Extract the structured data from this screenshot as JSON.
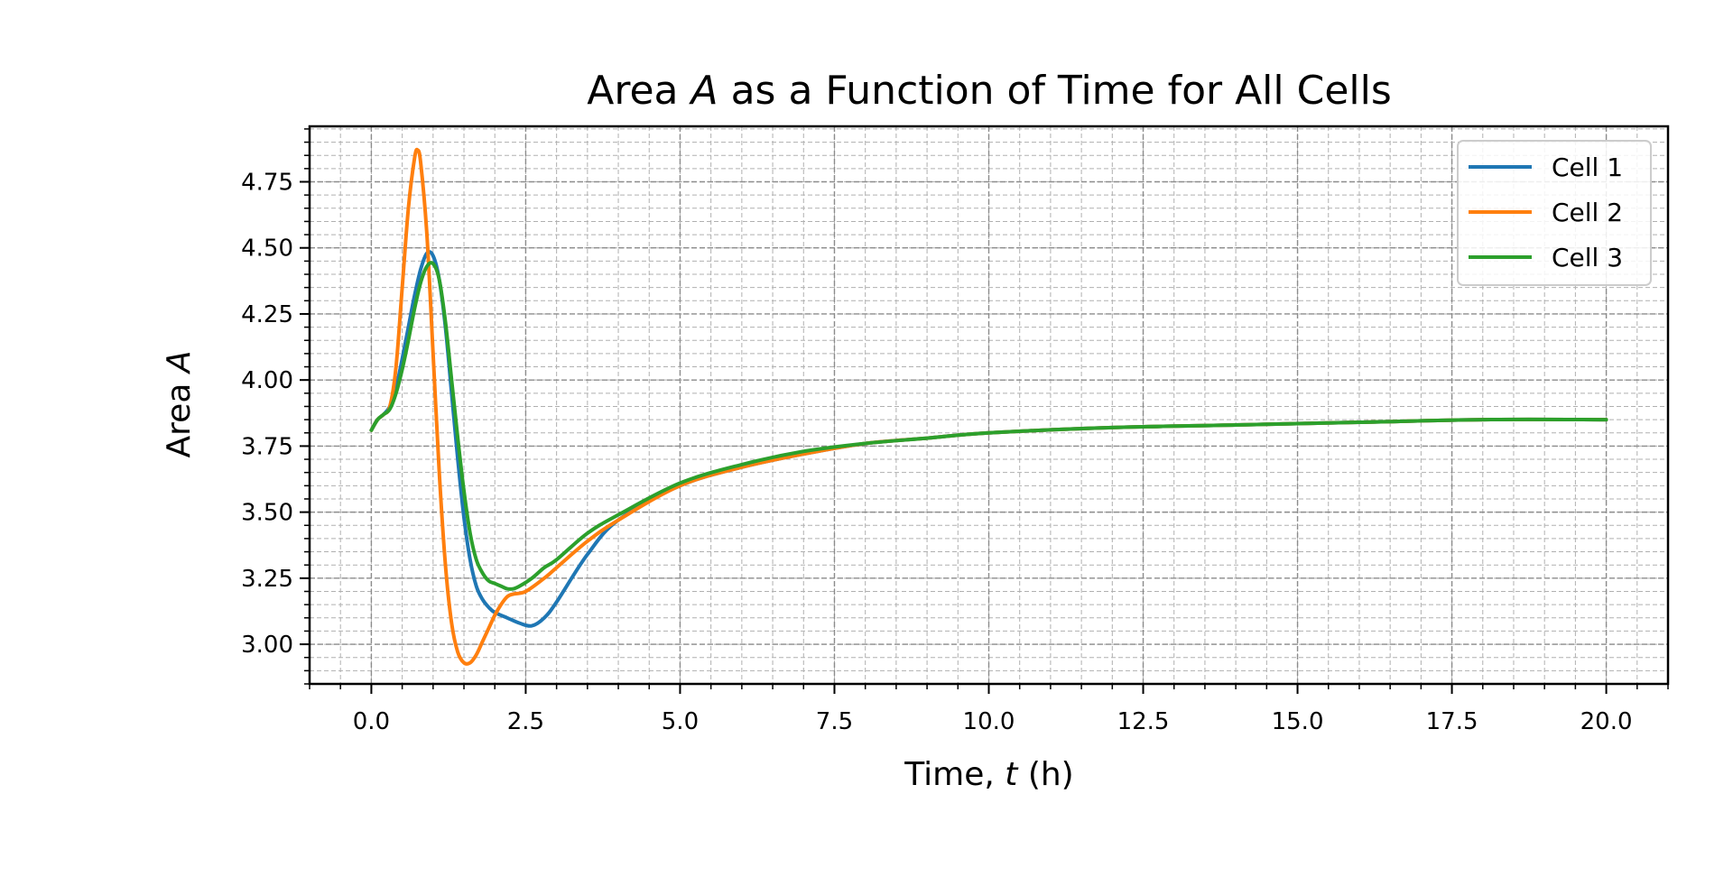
{
  "chart_data": {
    "type": "line",
    "title_parts": [
      "Area ",
      "A",
      " as a Function of Time for All Cells"
    ],
    "xlabel_parts": [
      "Time, ",
      "t",
      " (h)"
    ],
    "ylabel_parts": [
      "Area ",
      "A"
    ],
    "xlim": [
      -1.0,
      21.0
    ],
    "ylim": [
      2.85,
      4.96
    ],
    "xticks": [
      0.0,
      2.5,
      5.0,
      7.5,
      10.0,
      12.5,
      15.0,
      17.5,
      20.0
    ],
    "xtick_labels": [
      "0.0",
      "2.5",
      "5.0",
      "7.5",
      "10.0",
      "12.5",
      "15.0",
      "17.5",
      "20.0"
    ],
    "yticks": [
      3.0,
      3.25,
      3.5,
      3.75,
      4.0,
      4.25,
      4.5,
      4.75
    ],
    "ytick_labels": [
      "3.00",
      "3.25",
      "3.50",
      "3.75",
      "4.00",
      "4.25",
      "4.50",
      "4.75"
    ],
    "grid": true,
    "minor_grid": true,
    "legend_position": "upper right",
    "series": [
      {
        "name": "Cell 1",
        "color": "#1f77b4",
        "x": [
          0.0,
          0.1,
          0.2,
          0.3,
          0.4,
          0.5,
          0.6,
          0.7,
          0.8,
          0.9,
          1.0,
          1.1,
          1.2,
          1.3,
          1.4,
          1.5,
          1.6,
          1.7,
          1.8,
          1.9,
          2.0,
          2.2,
          2.4,
          2.6,
          2.8,
          3.0,
          3.5,
          4.0,
          5.0,
          6.0,
          7.0,
          8.0,
          9.0,
          10.0,
          12.0,
          14.0,
          16.0,
          18.0,
          20.0
        ],
        "y": [
          3.81,
          3.85,
          3.87,
          3.9,
          3.97,
          4.08,
          4.2,
          4.32,
          4.42,
          4.48,
          4.47,
          4.38,
          4.2,
          3.95,
          3.7,
          3.48,
          3.32,
          3.22,
          3.17,
          3.14,
          3.12,
          3.1,
          3.08,
          3.07,
          3.1,
          3.16,
          3.34,
          3.47,
          3.6,
          3.67,
          3.72,
          3.76,
          3.78,
          3.8,
          3.82,
          3.83,
          3.84,
          3.85,
          3.85
        ]
      },
      {
        "name": "Cell 2",
        "color": "#ff7f0e",
        "x": [
          0.0,
          0.1,
          0.2,
          0.3,
          0.4,
          0.5,
          0.6,
          0.7,
          0.75,
          0.8,
          0.9,
          1.0,
          1.1,
          1.2,
          1.3,
          1.4,
          1.5,
          1.6,
          1.7,
          1.8,
          1.9,
          2.0,
          2.1,
          2.2,
          2.3,
          2.5,
          2.8,
          3.0,
          3.5,
          4.0,
          5.0,
          6.0,
          7.0,
          8.0,
          9.0,
          10.0,
          12.0,
          14.0,
          16.0,
          18.0,
          20.0
        ],
        "y": [
          3.81,
          3.85,
          3.87,
          3.9,
          4.05,
          4.35,
          4.65,
          4.84,
          4.87,
          4.82,
          4.55,
          4.1,
          3.65,
          3.3,
          3.08,
          2.97,
          2.93,
          2.93,
          2.96,
          3.01,
          3.06,
          3.11,
          3.15,
          3.18,
          3.19,
          3.2,
          3.25,
          3.29,
          3.39,
          3.47,
          3.6,
          3.67,
          3.72,
          3.76,
          3.78,
          3.8,
          3.82,
          3.83,
          3.84,
          3.85,
          3.85
        ]
      },
      {
        "name": "Cell 3",
        "color": "#2ca02c",
        "x": [
          0.0,
          0.1,
          0.2,
          0.3,
          0.4,
          0.5,
          0.6,
          0.7,
          0.8,
          0.9,
          1.0,
          1.1,
          1.2,
          1.3,
          1.4,
          1.5,
          1.6,
          1.7,
          1.8,
          1.9,
          2.0,
          2.1,
          2.2,
          2.3,
          2.4,
          2.6,
          2.8,
          3.0,
          3.5,
          4.0,
          5.0,
          6.0,
          7.0,
          8.0,
          9.0,
          10.0,
          12.0,
          14.0,
          16.0,
          18.0,
          20.0
        ],
        "y": [
          3.81,
          3.85,
          3.87,
          3.89,
          3.95,
          4.04,
          4.15,
          4.27,
          4.37,
          4.43,
          4.44,
          4.38,
          4.22,
          4.0,
          3.78,
          3.58,
          3.42,
          3.32,
          3.27,
          3.24,
          3.23,
          3.22,
          3.21,
          3.21,
          3.22,
          3.25,
          3.29,
          3.32,
          3.42,
          3.49,
          3.61,
          3.68,
          3.73,
          3.76,
          3.78,
          3.8,
          3.82,
          3.83,
          3.84,
          3.85,
          3.85
        ]
      }
    ]
  }
}
